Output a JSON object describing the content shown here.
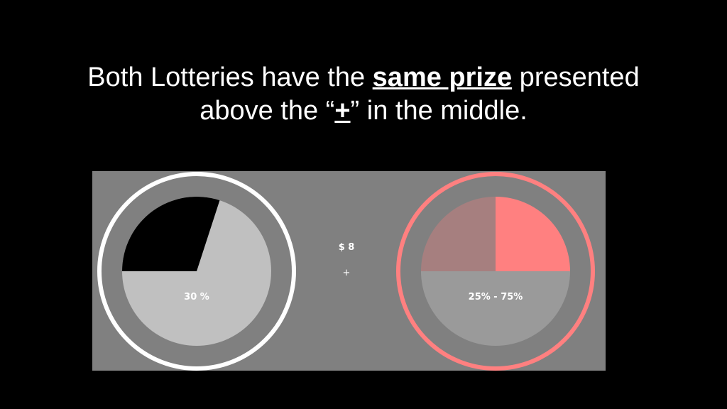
{
  "title": {
    "line1_pre": "Both Lotteries have the ",
    "line1_em": "same prize",
    "line1_post": " presented",
    "line2_pre": "above the “",
    "line2_em": "+",
    "line2_post": "” in the middle."
  },
  "stage": {
    "background": "#808080",
    "prize_label": "$ 8",
    "fixation": "+",
    "left_lottery": {
      "ring_color": "#ffffff",
      "win_color": "#000000",
      "lose_color": "#c0c0c0",
      "win_probability": 0.3,
      "label": "30 %"
    },
    "right_lottery": {
      "ring_color": "#ff8080",
      "sure_color": "#ff8080",
      "ambiguous_color": "#a67f7f",
      "lose_color": "#9a9a9a",
      "label": "25% - 75%"
    }
  }
}
